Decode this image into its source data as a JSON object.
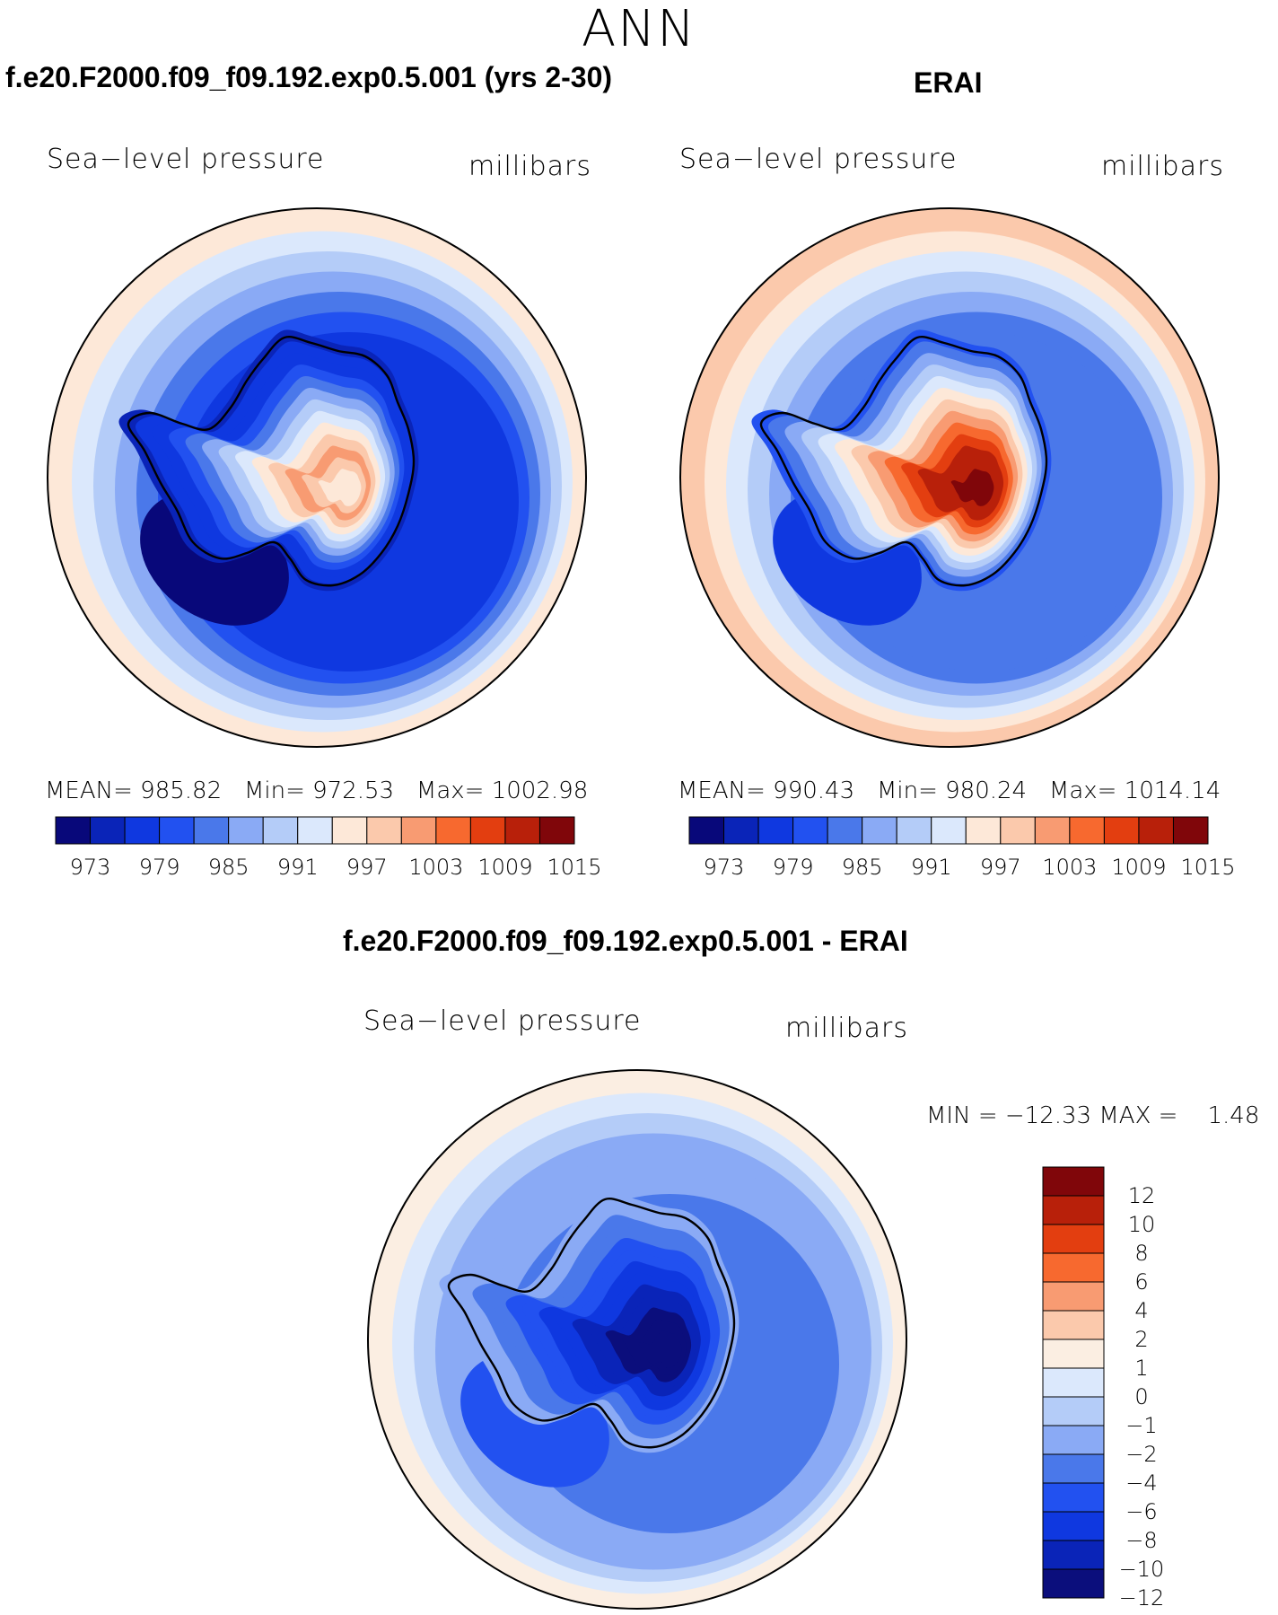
{
  "figure": {
    "title": "ANN",
    "panel_left_title": "f.e20.F2000.f09_f09.192.exp0.5.001 (yrs 2-30)",
    "panel_right_title": "ERAI",
    "panel_bottom_title": "f.e20.F2000.f09_f09.192.exp0.5.001 - ERAI"
  },
  "colors": {
    "abs_scale": [
      "#08087a",
      "#0a24b8",
      "#0f38e0",
      "#2251f0",
      "#4a78ea",
      "#8aaaf5",
      "#b4ccf8",
      "#dbe8fc",
      "#fde8d8",
      "#fbc9ac",
      "#f89b72",
      "#f7692f",
      "#e33e10",
      "#b8200a",
      "#80060a"
    ],
    "diff_scale": [
      "#0b0e7c",
      "#0a24b8",
      "#0f38e0",
      "#2251f0",
      "#4a78ea",
      "#8aaaf5",
      "#b4ccf8",
      "#dbe8fc",
      "#fbeee2",
      "#fbc9ac",
      "#f89b72",
      "#f7692f",
      "#e33e10",
      "#b8200a",
      "#80060a"
    ]
  },
  "chart_data": [
    {
      "type": "contour_map",
      "panel": "model",
      "title": "f.e20.F2000.f09_f09.192.exp0.5.001 (yrs 2-30)",
      "variable": "Sea−level pressure",
      "units": "millibars",
      "stats": {
        "mean_label": "MEAN=",
        "mean": "985.82",
        "min_label": "Min=",
        "min": "972.53",
        "max_label": "Max=",
        "max": "1002.98"
      },
      "levels": [
        "973",
        "979",
        "985",
        "991",
        "997",
        "1003",
        "1009",
        "1015"
      ],
      "ring_levels": [
        8,
        7,
        6,
        5,
        4,
        3,
        2
      ],
      "interior_levels": [
        1,
        2,
        2,
        3,
        4,
        5,
        6,
        7,
        8,
        9,
        10,
        9,
        8
      ],
      "low_center_level": 0
    },
    {
      "type": "contour_map",
      "panel": "obs",
      "title": "ERAI",
      "variable": "Sea−level pressure",
      "units": "millibars",
      "stats": {
        "mean_label": "MEAN=",
        "mean": "990.43",
        "min_label": "Min=",
        "min": "980.24",
        "max_label": "Max=",
        "max": "1014.14"
      },
      "levels": [
        "973",
        "979",
        "985",
        "991",
        "997",
        "1003",
        "1009",
        "1015"
      ],
      "ring_levels": [
        9,
        8,
        7,
        6,
        5,
        4,
        4
      ],
      "interior_levels": [
        3,
        4,
        5,
        6,
        7,
        8,
        9,
        10,
        11,
        12,
        13,
        13,
        14
      ],
      "low_center_level": 2
    },
    {
      "type": "contour_map",
      "panel": "difference",
      "title": "f.e20.F2000.f09_f09.192.exp0.5.001 - ERAI",
      "variable": "Sea−level pressure",
      "units": "millibars",
      "stats": {
        "text": "MIN = −12.33 MAX =    1.48"
      },
      "levels": [
        "12",
        "10",
        "8",
        "6",
        "4",
        "2",
        "1",
        "0",
        "−1",
        "−2",
        "−4",
        "−6",
        "−8",
        "−10",
        "−12"
      ],
      "ring_levels": [
        8,
        7,
        6,
        5,
        5,
        5,
        4
      ],
      "interior_levels": [
        5,
        5,
        4,
        4,
        3,
        3,
        2,
        2,
        1,
        1,
        0,
        0,
        0
      ],
      "low_center_level": 3
    }
  ]
}
